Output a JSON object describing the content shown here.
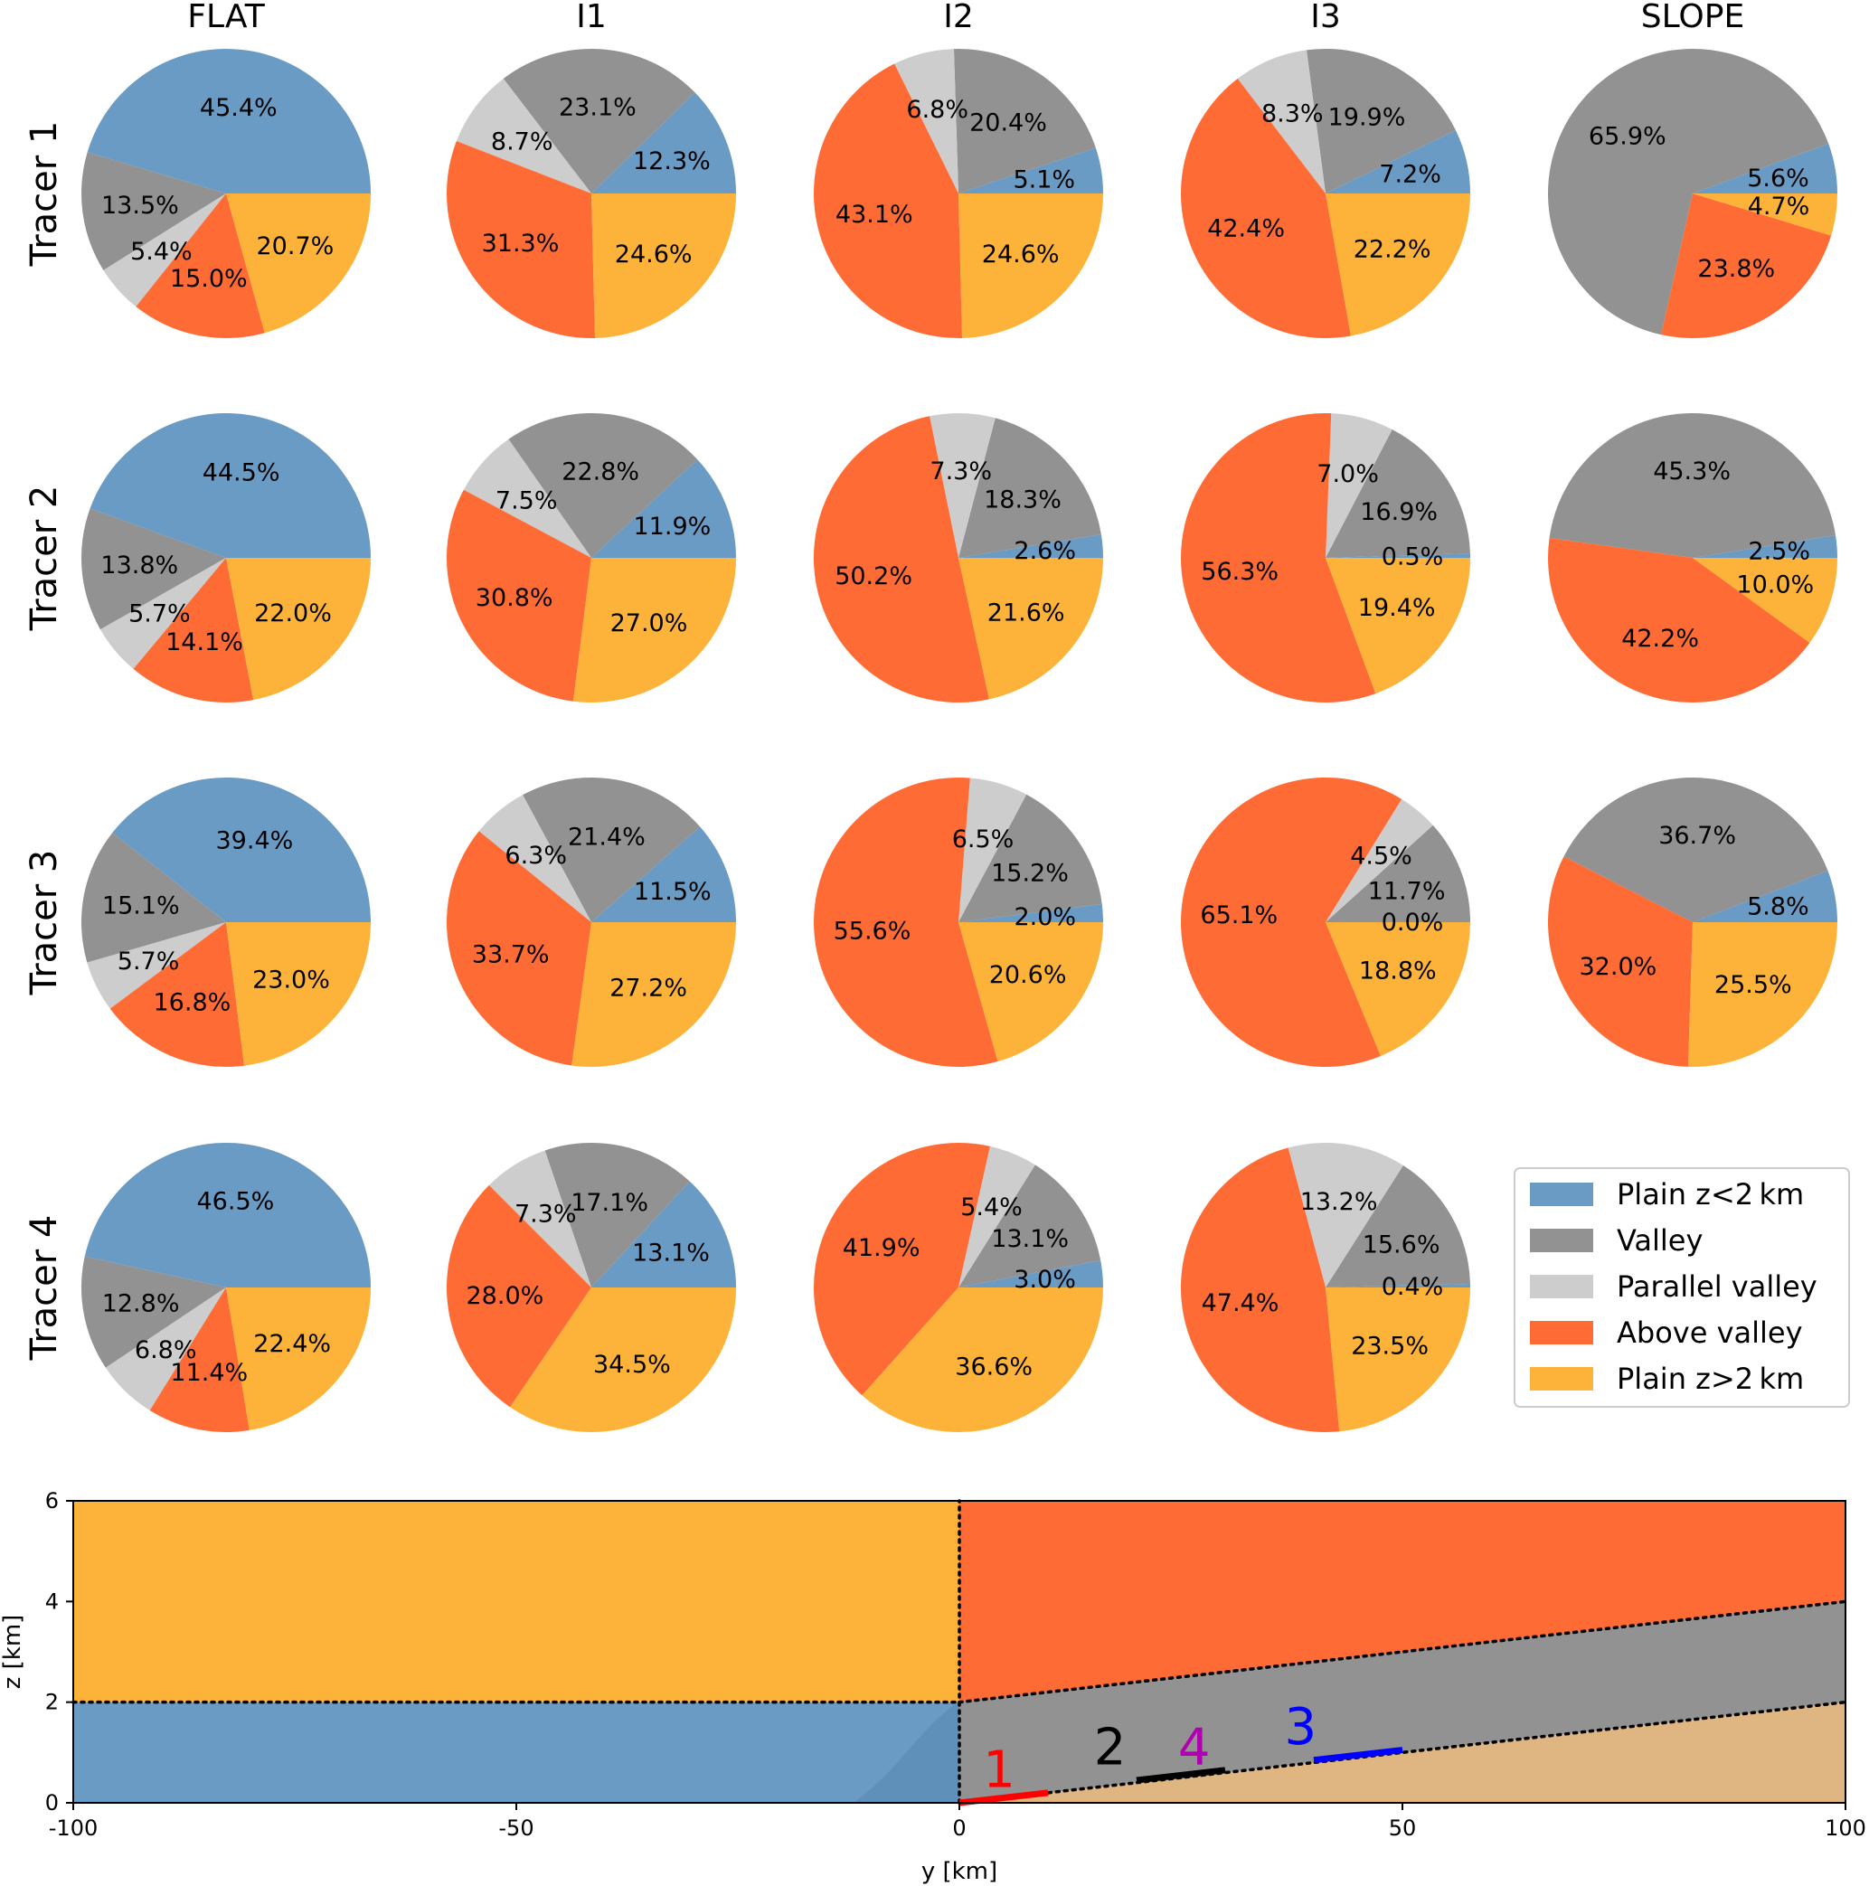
{
  "colors": {
    "plain_low": "#6a9bc4",
    "valley": "#929292",
    "parallel_valley": "#cdcdcd",
    "above_valley": "#ff6b35",
    "plain_high": "#fdb33a",
    "terrain": "#dfb581"
  },
  "chart_data": [
    {
      "type": "pie",
      "column_titles": [
        "FLAT",
        "I1",
        "I2",
        "I3",
        "SLOPE"
      ],
      "row_titles": [
        "Tracer 1",
        "Tracer 2",
        "Tracer 3",
        "Tracer 4"
      ],
      "legend": {
        "placement": "lower-right",
        "entries": [
          "Plain z<2 km",
          "Valley",
          "Parallel valley",
          "Above valley",
          "Plain z>2 km"
        ]
      },
      "series_order": [
        "plain_low",
        "valley",
        "parallel_valley",
        "above_valley",
        "plain_high"
      ],
      "pies": [
        [
          {
            "values": [
              45.4,
              13.5,
              5.4,
              15.0,
              20.7
            ],
            "labels": [
              "45.4%",
              "13.5%",
              "5.4%",
              "15.0%",
              "20.7%"
            ]
          },
          {
            "values": [
              12.3,
              23.1,
              8.7,
              31.3,
              24.6
            ],
            "labels": [
              "12.3%",
              "23.1%",
              "8.7%",
              "31.3%",
              "24.6%"
            ]
          },
          {
            "values": [
              5.1,
              20.4,
              6.8,
              43.1,
              24.6
            ],
            "labels": [
              "5.1%",
              "20.4%",
              "6.8%",
              "43.1%",
              "24.6%"
            ]
          },
          {
            "values": [
              7.2,
              19.9,
              8.3,
              42.4,
              22.2
            ],
            "labels": [
              "7.2%",
              "19.9%",
              "8.3%",
              "42.4%",
              "22.2%"
            ]
          },
          {
            "values": [
              5.6,
              65.9,
              0,
              23.8,
              4.7
            ],
            "labels": [
              "5.6%",
              "65.9%",
              "",
              "23.8%",
              "4.7%"
            ]
          }
        ],
        [
          {
            "values": [
              44.5,
              13.8,
              5.7,
              14.1,
              22.0
            ],
            "labels": [
              "44.5%",
              "13.8%",
              "5.7%",
              "14.1%",
              "22.0%"
            ]
          },
          {
            "values": [
              11.9,
              22.8,
              7.5,
              30.8,
              27.0
            ],
            "labels": [
              "11.9%",
              "22.8%",
              "7.5%",
              "30.8%",
              "27.0%"
            ]
          },
          {
            "values": [
              2.6,
              18.3,
              7.3,
              50.2,
              21.6
            ],
            "labels": [
              "2.6%",
              "18.3%",
              "7.3%",
              "50.2%",
              "21.6%"
            ]
          },
          {
            "values": [
              0.5,
              16.9,
              7.0,
              56.3,
              19.4
            ],
            "labels": [
              "0.5%",
              "16.9%",
              "7.0%",
              "56.3%",
              "19.4%"
            ]
          },
          {
            "values": [
              2.5,
              45.3,
              0,
              42.2,
              10.0
            ],
            "labels": [
              "2.5%",
              "45.3%",
              "",
              "42.2%",
              "10.0%"
            ]
          }
        ],
        [
          {
            "values": [
              39.4,
              15.1,
              5.7,
              16.8,
              23.0
            ],
            "labels": [
              "39.4%",
              "15.1%",
              "5.7%",
              "16.8%",
              "23.0%"
            ]
          },
          {
            "values": [
              11.5,
              21.4,
              6.3,
              33.7,
              27.2
            ],
            "labels": [
              "11.5%",
              "21.4%",
              "6.3%",
              "33.7%",
              "27.2%"
            ]
          },
          {
            "values": [
              2.0,
              15.2,
              6.5,
              55.6,
              20.6
            ],
            "labels": [
              "2.0%",
              "15.2%",
              "6.5%",
              "55.6%",
              "20.6%"
            ]
          },
          {
            "values": [
              0.0,
              11.7,
              4.5,
              65.1,
              18.8
            ],
            "labels": [
              "0.0%",
              "11.7%",
              "4.5%",
              "65.1%",
              "18.8%"
            ]
          },
          {
            "values": [
              5.8,
              36.7,
              0,
              32.0,
              25.5
            ],
            "labels": [
              "5.8%",
              "36.7%",
              "",
              "32.0%",
              "25.5%"
            ]
          }
        ],
        [
          {
            "values": [
              46.5,
              12.8,
              6.8,
              11.4,
              22.4
            ],
            "labels": [
              "46.5%",
              "12.8%",
              "6.8%",
              "11.4%",
              "22.4%"
            ]
          },
          {
            "values": [
              13.1,
              17.1,
              7.3,
              28.0,
              34.5
            ],
            "labels": [
              "13.1%",
              "17.1%",
              "7.3%",
              "28.0%",
              "34.5%"
            ]
          },
          {
            "values": [
              3.0,
              13.1,
              5.4,
              41.9,
              36.6
            ],
            "labels": [
              "3.0%",
              "13.1%",
              "5.4%",
              "41.9%",
              "36.6%"
            ]
          },
          {
            "values": [
              0.4,
              15.6,
              13.2,
              47.4,
              23.5
            ],
            "labels": [
              "0.4%",
              "15.6%",
              "13.2%",
              "47.4%",
              "23.5%"
            ]
          },
          null
        ]
      ]
    },
    {
      "type": "area",
      "xlabel": "y [km]",
      "ylabel": "z [km]",
      "xlim": [
        -100,
        100
      ],
      "ylim": [
        0,
        6
      ],
      "xticks": [
        -100,
        -50,
        0,
        50,
        100
      ],
      "yticks": [
        0,
        2,
        4,
        6
      ],
      "regions": {
        "plain_high": {
          "x": [
            -100,
            0
          ],
          "z_from": 2,
          "z_to": 6
        },
        "plain_low": {
          "x": [
            -100,
            0
          ],
          "z_from": 0,
          "z_to": 2
        },
        "above_valley": {
          "x": [
            0,
            100
          ],
          "z_lower": [
            2,
            4
          ],
          "z_to": 6
        },
        "valley": {
          "x": [
            0,
            100
          ],
          "z_lower": [
            0,
            2
          ],
          "z_upper": [
            2,
            4
          ]
        },
        "terrain": {
          "x": [
            0,
            100
          ],
          "z_upper": [
            0,
            2
          ]
        }
      },
      "dotted_boundaries": [
        {
          "x": [
            -100,
            0
          ],
          "z": [
            2,
            2
          ]
        },
        {
          "x": [
            0,
            100
          ],
          "z": [
            2,
            4
          ]
        },
        {
          "x": [
            0,
            100
          ],
          "z": [
            0,
            2
          ]
        },
        {
          "x": [
            0,
            0
          ],
          "z": [
            0,
            6
          ]
        }
      ],
      "tracers": [
        {
          "label": "1",
          "color": "#ff0000",
          "x": [
            0,
            10
          ],
          "z": [
            0.0,
            0.2
          ]
        },
        {
          "label": "2",
          "color": "#000000",
          "x": [
            20,
            30
          ],
          "z": [
            0.45,
            0.65
          ]
        },
        {
          "label": "3",
          "color": "#0000ff",
          "x": [
            40,
            50
          ],
          "z": [
            0.85,
            1.05
          ]
        },
        {
          "label": "4",
          "color": "#b000b0",
          "x": [
            20,
            30
          ],
          "z": [
            0.45,
            0.65
          ]
        }
      ]
    }
  ]
}
